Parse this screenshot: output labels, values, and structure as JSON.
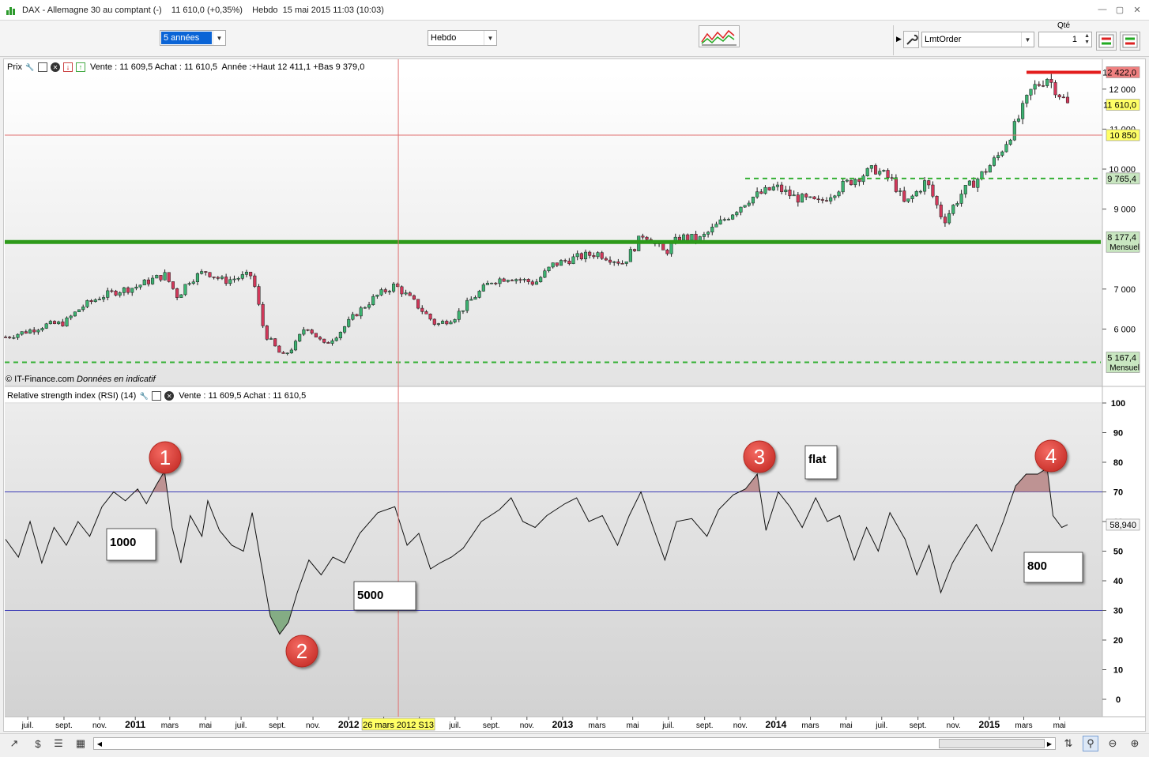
{
  "window": {
    "title": "DAX - Allemagne 30 au comptant (-)    11 610,0 (+0,35%)    Hebdo  15 mai 2015 11:03 (10:03)"
  },
  "toolbar": {
    "period_value": "5 années",
    "timeframe_value": "Hebdo",
    "order_type_value": "LmtOrder",
    "qty_label": "Qté",
    "qty_value": "1"
  },
  "price_panel": {
    "name": "Prix",
    "info": "Vente : 11 609,5 Achat : 11 610,5  Année :+Haut 12 411,1 +Bas 9 379,0",
    "watermark_source": "© IT-Finance.com",
    "watermark_note": "Données en indicatif"
  },
  "rsi_panel": {
    "name": "Relative strength index (RSI) (14)",
    "info": "Vente : 11 609,5 Achat : 11 610,5"
  },
  "badges": {
    "top_red": "12 422,0",
    "last": "11 610,0",
    "crosshair": "10 850",
    "dashed_upper": "9 765,4",
    "solid_level": "8 177,4",
    "solid_level_tf": "Mensuel",
    "dashed_lower": "5 167,4",
    "dashed_lower_tf": "Mensuel",
    "rsi_last": "58,940"
  },
  "crosshair_date": "26 mars 2012 S13",
  "colors": {
    "bull_candle": "#3cb371",
    "bear_candle": "#d2385a",
    "support_line": "#2d9a1a",
    "dashed_line": "#34b034",
    "resistance": "#e31d1d",
    "rsi_band": "#3a3ab5",
    "crosshair": "#e07070",
    "overbought_fill": "#b98a8a",
    "oversold_fill": "#7aa67a",
    "annotation_marker": "#e0433f",
    "badge_yellow": "#ffff66",
    "badge_green": "#c8e6c0",
    "badge_red": "#f08080"
  },
  "annotations": {
    "markers": [
      "1",
      "2",
      "3",
      "4"
    ],
    "notes": [
      "1000",
      "5000",
      "flat",
      "800"
    ]
  },
  "chart_data": [
    {
      "type": "candlestick",
      "title": "",
      "ylim": [
        4900,
        12700
      ],
      "y_ticks": [
        "12 000",
        "11 000",
        "10 000",
        "9 000",
        "7 000",
        "6 000"
      ],
      "levels": [
        {
          "value": 12422.0,
          "style": "solid-red"
        },
        {
          "value": 9765.4,
          "style": "dashed-green"
        },
        {
          "value": 8177.4,
          "style": "solid-green"
        },
        {
          "value": 5167.4,
          "style": "dashed-green"
        }
      ],
      "close_path": [
        [
          "2010-05-24",
          5800
        ],
        [
          "2010-07-01",
          5950
        ],
        [
          "2010-08-01",
          6100
        ],
        [
          "2010-09-01",
          6150
        ],
        [
          "2010-10-01",
          6550
        ],
        [
          "2010-11-01",
          6800
        ],
        [
          "2010-12-01",
          6950
        ],
        [
          "2011-01-01",
          7050
        ],
        [
          "2011-02-01",
          7250
        ],
        [
          "2011-02-21",
          7350
        ],
        [
          "2011-03-15",
          6800
        ],
        [
          "2011-04-01",
          7200
        ],
        [
          "2011-05-01",
          7450
        ],
        [
          "2011-06-01",
          7200
        ],
        [
          "2011-07-01",
          7300
        ],
        [
          "2011-07-20",
          7350
        ],
        [
          "2011-08-10",
          5900
        ],
        [
          "2011-09-10",
          5300
        ],
        [
          "2011-10-01",
          5600
        ],
        [
          "2011-10-20",
          6100
        ],
        [
          "2011-11-20",
          5600
        ],
        [
          "2011-12-15",
          5900
        ],
        [
          "2012-01-15",
          6400
        ],
        [
          "2012-02-15",
          6800
        ],
        [
          "2012-03-20",
          7100
        ],
        [
          "2012-04-20",
          6700
        ],
        [
          "2012-05-30",
          6100
        ],
        [
          "2012-06-30",
          6300
        ],
        [
          "2012-07-30",
          6750
        ],
        [
          "2012-09-01",
          7200
        ],
        [
          "2012-10-01",
          7300
        ],
        [
          "2012-11-15",
          7150
        ],
        [
          "2012-12-15",
          7600
        ],
        [
          "2013-01-15",
          7750
        ],
        [
          "2013-03-01",
          7900
        ],
        [
          "2013-04-15",
          7650
        ],
        [
          "2013-05-20",
          8400
        ],
        [
          "2013-06-25",
          7900
        ],
        [
          "2013-07-20",
          8300
        ],
        [
          "2013-08-25",
          8250
        ],
        [
          "2013-10-01",
          8700
        ],
        [
          "2013-11-15",
          9250
        ],
        [
          "2014-01-01",
          9550
        ],
        [
          "2014-02-01",
          9300
        ],
        [
          "2014-03-15",
          9150
        ],
        [
          "2014-04-15",
          9500
        ],
        [
          "2014-05-20",
          9800
        ],
        [
          "2014-06-20",
          10000
        ],
        [
          "2014-07-20",
          9700
        ],
        [
          "2014-08-10",
          9100
        ],
        [
          "2014-09-15",
          9700
        ],
        [
          "2014-10-15",
          8700
        ],
        [
          "2014-11-15",
          9400
        ],
        [
          "2014-12-15",
          9800
        ],
        [
          "2015-01-15",
          10300
        ],
        [
          "2015-02-15",
          11100
        ],
        [
          "2015-03-15",
          12000
        ],
        [
          "2015-04-10",
          12300
        ],
        [
          "2015-05-15",
          11610
        ]
      ]
    },
    {
      "type": "line",
      "title": "",
      "ylim": [
        0,
        100
      ],
      "y_ticks": [
        100,
        90,
        80,
        70,
        60,
        50,
        40,
        30,
        20,
        10,
        0
      ],
      "bands": [
        70,
        30
      ],
      "x_ticks": [
        "juil.",
        "sept.",
        "nov.",
        "2011",
        "mars",
        "mai",
        "juil.",
        "sept.",
        "nov.",
        "2012",
        "mars",
        "mai",
        "juil.",
        "sept.",
        "nov.",
        "2013",
        "mars",
        "mai",
        "juil.",
        "sept.",
        "nov.",
        "2014",
        "mars",
        "mai",
        "juil.",
        "sept.",
        "nov.",
        "2015",
        "mars",
        "mai"
      ],
      "series": [
        {
          "values": [
            [
              "2010-05-24",
              54
            ],
            [
              "2010-06-15",
              48
            ],
            [
              "2010-07-05",
              60
            ],
            [
              "2010-07-25",
              46
            ],
            [
              "2010-08-15",
              58
            ],
            [
              "2010-09-05",
              52
            ],
            [
              "2010-09-25",
              60
            ],
            [
              "2010-10-15",
              55
            ],
            [
              "2010-11-05",
              65
            ],
            [
              "2010-11-25",
              70
            ],
            [
              "2010-12-15",
              67
            ],
            [
              "2011-01-05",
              71
            ],
            [
              "2011-01-20",
              66
            ],
            [
              "2011-02-05",
              72
            ],
            [
              "2011-02-20",
              77
            ],
            [
              "2011-03-05",
              58
            ],
            [
              "2011-03-20",
              46
            ],
            [
              "2011-04-05",
              62
            ],
            [
              "2011-04-25",
              55
            ],
            [
              "2011-05-05",
              67
            ],
            [
              "2011-05-25",
              57
            ],
            [
              "2011-06-15",
              52
            ],
            [
              "2011-07-05",
              50
            ],
            [
              "2011-07-20",
              63
            ],
            [
              "2011-08-05",
              45
            ],
            [
              "2011-08-20",
              28
            ],
            [
              "2011-09-05",
              22
            ],
            [
              "2011-09-20",
              26
            ],
            [
              "2011-10-05",
              36
            ],
            [
              "2011-10-25",
              47
            ],
            [
              "2011-11-15",
              42
            ],
            [
              "2011-12-05",
              48
            ],
            [
              "2011-12-25",
              46
            ],
            [
              "2012-01-20",
              56
            ],
            [
              "2012-02-20",
              63
            ],
            [
              "2012-03-20",
              65
            ],
            [
              "2012-04-10",
              52
            ],
            [
              "2012-04-30",
              56
            ],
            [
              "2012-05-20",
              44
            ],
            [
              "2012-06-05",
              46
            ],
            [
              "2012-06-25",
              48
            ],
            [
              "2012-07-15",
              51
            ],
            [
              "2012-08-15",
              60
            ],
            [
              "2012-09-15",
              64
            ],
            [
              "2012-10-05",
              68
            ],
            [
              "2012-10-25",
              60
            ],
            [
              "2012-11-15",
              58
            ],
            [
              "2012-12-05",
              62
            ],
            [
              "2013-01-05",
              66
            ],
            [
              "2013-01-25",
              68
            ],
            [
              "2013-02-15",
              60
            ],
            [
              "2013-03-10",
              62
            ],
            [
              "2013-04-05",
              52
            ],
            [
              "2013-04-25",
              62
            ],
            [
              "2013-05-15",
              70
            ],
            [
              "2013-06-05",
              58
            ],
            [
              "2013-06-25",
              47
            ],
            [
              "2013-07-15",
              60
            ],
            [
              "2013-08-10",
              61
            ],
            [
              "2013-09-05",
              55
            ],
            [
              "2013-09-25",
              64
            ],
            [
              "2013-10-20",
              69
            ],
            [
              "2013-11-10",
              71
            ],
            [
              "2013-11-30",
              76
            ],
            [
              "2013-12-15",
              57
            ],
            [
              "2014-01-05",
              70
            ],
            [
              "2014-01-25",
              65
            ],
            [
              "2014-02-15",
              58
            ],
            [
              "2014-03-10",
              68
            ],
            [
              "2014-03-30",
              60
            ],
            [
              "2014-04-20",
              62
            ],
            [
              "2014-05-15",
              47
            ],
            [
              "2014-06-05",
              58
            ],
            [
              "2014-06-25",
              50
            ],
            [
              "2014-07-15",
              63
            ],
            [
              "2014-08-10",
              54
            ],
            [
              "2014-08-30",
              42
            ],
            [
              "2014-09-20",
              52
            ],
            [
              "2014-10-10",
              36
            ],
            [
              "2014-10-30",
              46
            ],
            [
              "2014-11-20",
              53
            ],
            [
              "2014-12-10",
              59
            ],
            [
              "2015-01-05",
              50
            ],
            [
              "2015-01-25",
              60
            ],
            [
              "2015-02-15",
              72
            ],
            [
              "2015-03-05",
              76
            ],
            [
              "2015-03-25",
              76
            ],
            [
              "2015-04-10",
              78
            ],
            [
              "2015-04-20",
              62
            ],
            [
              "2015-05-05",
              58
            ],
            [
              "2015-05-15",
              58.94
            ]
          ]
        }
      ]
    }
  ]
}
